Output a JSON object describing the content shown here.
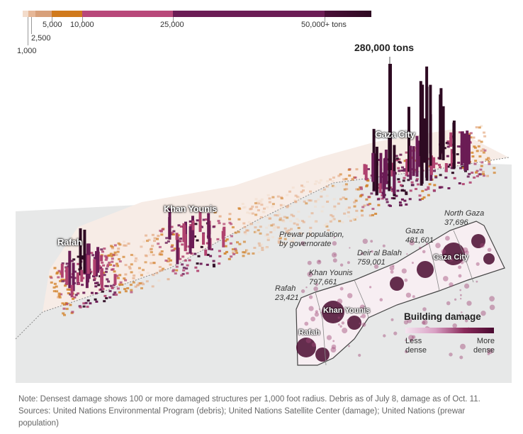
{
  "legend": {
    "colors": [
      "#f3dccb",
      "#e3a47a",
      "#d07a1c",
      "#b0426f",
      "#6b1c55",
      "#2e0a22"
    ],
    "labels": {
      "l1000": "1,000",
      "l2500": "2,500",
      "l5000": "5,000",
      "l10000": "10,000",
      "l25000": "25,000",
      "l50000": "50,000+ tons"
    }
  },
  "map": {
    "peak_label": "280,000 tons",
    "places": {
      "gaza_city": "Gaza City",
      "khan_younis": "Khan Younis",
      "rafah": "Rafah"
    }
  },
  "inset": {
    "title_line1": "Prewar population,",
    "title_line2": "by governorate",
    "governorates": {
      "north_gaza": {
        "name": "North Gaza",
        "pop": "37,696"
      },
      "gaza": {
        "name": "Gaza",
        "pop": "481,601"
      },
      "deir_al_balah": {
        "name": "Deir al Balah",
        "pop": "759,001"
      },
      "khan_younis": {
        "name": "Khan Younis",
        "pop": "797,661"
      },
      "rafah": {
        "name": "Rafah",
        "pop": "23,421"
      }
    },
    "map_labels": {
      "gaza_city": "Gaza City",
      "khan_younis": "Khan Younis",
      "rafah": "Rafah"
    },
    "damage_legend": {
      "title": "Building damage",
      "less": "Less",
      "less2": "dense",
      "more": "More",
      "more2": "dense"
    }
  },
  "notes": {
    "line1": "Note: Densest damage shows 100 or more damaged structures per 1,000 foot radius. Debris as of July 8, damage as of Oct. 11.",
    "line2": "Sources: United Nations Environmental Program (debris); United Nations Satellite Center (damage); United Nations (prewar",
    "line3": "population)"
  }
}
